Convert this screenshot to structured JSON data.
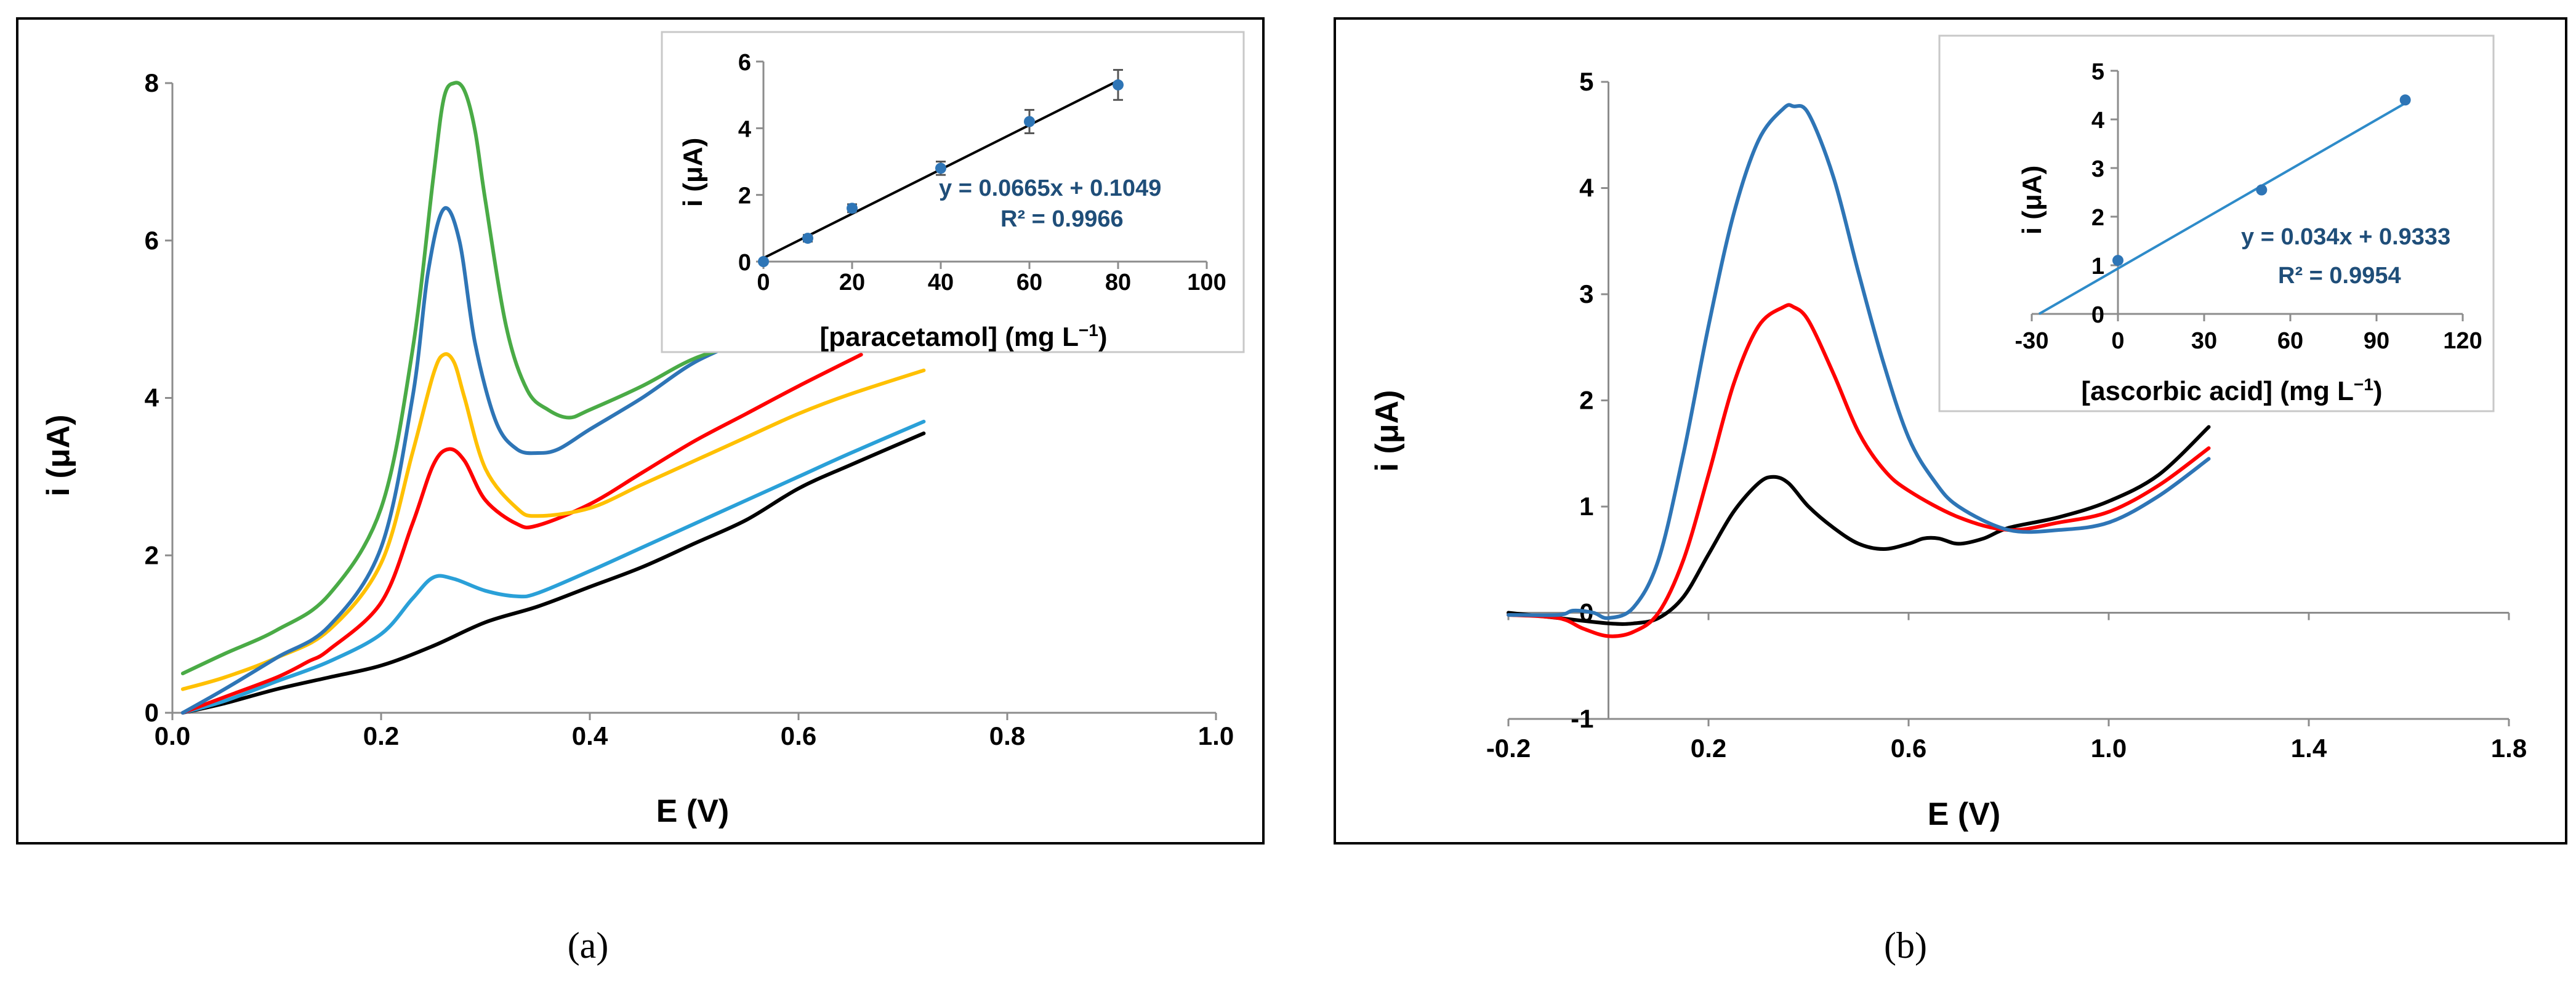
{
  "chart_data": [
    {
      "panel": "a",
      "type": "line",
      "caption": "(a)",
      "xlabel": "E (V)",
      "ylabel": "i (μA)",
      "xlim": [
        0.0,
        1.0
      ],
      "ylim": [
        0,
        8
      ],
      "xticks": [
        "0.0",
        "0.2",
        "0.4",
        "0.6",
        "0.8",
        "1.0"
      ],
      "yticks": [
        "0",
        "2",
        "4",
        "6",
        "8"
      ],
      "series": [
        {
          "name": "black",
          "color": "#000000",
          "x": [
            0.01,
            0.05,
            0.1,
            0.15,
            0.2,
            0.25,
            0.3,
            0.35,
            0.4,
            0.45,
            0.5,
            0.55,
            0.6,
            0.65,
            0.72
          ],
          "y": [
            0.0,
            0.12,
            0.3,
            0.45,
            0.6,
            0.85,
            1.15,
            1.35,
            1.6,
            1.85,
            2.15,
            2.45,
            2.85,
            3.15,
            3.55
          ]
        },
        {
          "name": "light blue",
          "color": "#2aa0d8",
          "x": [
            0.01,
            0.05,
            0.1,
            0.15,
            0.2,
            0.23,
            0.25,
            0.27,
            0.3,
            0.33,
            0.35,
            0.4,
            0.45,
            0.5,
            0.55,
            0.6,
            0.65,
            0.72
          ],
          "y": [
            0.0,
            0.15,
            0.4,
            0.65,
            1.0,
            1.45,
            1.72,
            1.7,
            1.55,
            1.48,
            1.52,
            1.8,
            2.1,
            2.4,
            2.7,
            3.0,
            3.3,
            3.7
          ]
        },
        {
          "name": "red",
          "color": "#ff0000",
          "x": [
            0.01,
            0.05,
            0.1,
            0.13,
            0.15,
            0.2,
            0.23,
            0.25,
            0.265,
            0.28,
            0.3,
            0.33,
            0.35,
            0.4,
            0.45,
            0.5,
            0.55,
            0.6,
            0.66
          ],
          "y": [
            0.0,
            0.2,
            0.45,
            0.65,
            0.8,
            1.4,
            2.4,
            3.15,
            3.35,
            3.2,
            2.7,
            2.4,
            2.38,
            2.65,
            3.05,
            3.45,
            3.8,
            4.15,
            4.55
          ]
        },
        {
          "name": "yellow",
          "color": "#ffc000",
          "x": [
            0.01,
            0.05,
            0.1,
            0.15,
            0.2,
            0.23,
            0.25,
            0.26,
            0.27,
            0.28,
            0.3,
            0.33,
            0.35,
            0.4,
            0.45,
            0.5,
            0.55,
            0.6,
            0.65,
            0.72
          ],
          "y": [
            0.3,
            0.45,
            0.7,
            1.05,
            1.9,
            3.3,
            4.3,
            4.55,
            4.45,
            4.0,
            3.1,
            2.6,
            2.5,
            2.6,
            2.9,
            3.2,
            3.5,
            3.8,
            4.05,
            4.35
          ]
        },
        {
          "name": "blue",
          "color": "#2e75b6",
          "x": [
            0.01,
            0.05,
            0.1,
            0.15,
            0.2,
            0.23,
            0.245,
            0.26,
            0.275,
            0.29,
            0.31,
            0.33,
            0.35,
            0.37,
            0.4,
            0.45,
            0.5,
            0.55
          ],
          "y": [
            0.0,
            0.3,
            0.7,
            1.1,
            2.1,
            4.0,
            5.6,
            6.4,
            6.0,
            4.7,
            3.7,
            3.35,
            3.3,
            3.35,
            3.6,
            4.0,
            4.45,
            4.75
          ]
        },
        {
          "name": "green",
          "color": "#4aab46",
          "x": [
            0.01,
            0.05,
            0.1,
            0.15,
            0.2,
            0.23,
            0.25,
            0.26,
            0.27,
            0.28,
            0.29,
            0.3,
            0.32,
            0.34,
            0.36,
            0.38,
            0.4,
            0.45,
            0.5,
            0.55
          ],
          "y": [
            0.5,
            0.75,
            1.05,
            1.5,
            2.6,
            4.6,
            6.8,
            7.8,
            8.0,
            7.9,
            7.4,
            6.5,
            4.9,
            4.1,
            3.85,
            3.75,
            3.85,
            4.15,
            4.5,
            4.7
          ]
        }
      ],
      "inset": {
        "xlabel_main": "[paracetamol] (mg L",
        "xlabel_sup": "−1",
        "xlabel_end": ")",
        "ylabel": "i (μA)",
        "xlim": [
          0,
          100
        ],
        "ylim": [
          0,
          6
        ],
        "xticks": [
          "0",
          "20",
          "40",
          "60",
          "80",
          "100"
        ],
        "yticks": [
          "0",
          "2",
          "4",
          "6"
        ],
        "points": {
          "x": [
            0,
            10,
            20,
            40,
            60,
            80
          ],
          "y": [
            0.0,
            0.7,
            1.6,
            2.8,
            4.2,
            5.3
          ],
          "err": [
            0.05,
            0.1,
            0.12,
            0.2,
            0.35,
            0.45
          ]
        },
        "fit": {
          "slope": 0.0665,
          "intercept": 0.1049,
          "x_range": [
            0,
            80
          ]
        },
        "equation": "y = 0.0665x + 0.1049",
        "r2": "R² = 0.9966",
        "point_color": "#2e75b6",
        "line_color": "#000000"
      }
    },
    {
      "panel": "b",
      "type": "line",
      "caption": "(b)",
      "xlabel": "E (V)",
      "ylabel": "i (μA)",
      "xlim": [
        -0.2,
        1.8
      ],
      "ylim": [
        -1,
        5
      ],
      "xticks": [
        "-0.2",
        "0.2",
        "0.6",
        "1.0",
        "1.4",
        "1.8"
      ],
      "yticks": [
        "-1",
        "0",
        "1",
        "2",
        "3",
        "4",
        "5"
      ],
      "series": [
        {
          "name": "black",
          "color": "#000000",
          "x": [
            -0.2,
            -0.1,
            0.0,
            0.05,
            0.1,
            0.15,
            0.2,
            0.25,
            0.3,
            0.33,
            0.36,
            0.4,
            0.45,
            0.5,
            0.55,
            0.6,
            0.63,
            0.66,
            0.7,
            0.75,
            0.8,
            0.9,
            1.0,
            1.1,
            1.2
          ],
          "y": [
            0.0,
            -0.05,
            -0.1,
            -0.1,
            -0.05,
            0.15,
            0.55,
            0.95,
            1.22,
            1.28,
            1.22,
            1.0,
            0.8,
            0.65,
            0.6,
            0.65,
            0.7,
            0.7,
            0.65,
            0.7,
            0.8,
            0.9,
            1.05,
            1.3,
            1.75
          ]
        },
        {
          "name": "red",
          "color": "#ff0000",
          "x": [
            -0.2,
            -0.1,
            -0.05,
            0.0,
            0.05,
            0.1,
            0.15,
            0.2,
            0.25,
            0.3,
            0.35,
            0.37,
            0.4,
            0.45,
            0.5,
            0.55,
            0.6,
            0.7,
            0.8,
            0.9,
            1.0,
            1.1,
            1.2
          ],
          "y": [
            -0.02,
            -0.05,
            -0.15,
            -0.22,
            -0.18,
            0.0,
            0.5,
            1.3,
            2.15,
            2.7,
            2.88,
            2.88,
            2.75,
            2.25,
            1.7,
            1.35,
            1.15,
            0.9,
            0.78,
            0.85,
            0.95,
            1.2,
            1.55
          ]
        },
        {
          "name": "blue",
          "color": "#2e75b6",
          "x": [
            -0.2,
            -0.1,
            -0.07,
            -0.03,
            0.0,
            0.05,
            0.1,
            0.15,
            0.2,
            0.25,
            0.3,
            0.35,
            0.37,
            0.4,
            0.45,
            0.5,
            0.55,
            0.6,
            0.65,
            0.7,
            0.8,
            0.9,
            1.0,
            1.1,
            1.2
          ],
          "y": [
            -0.02,
            -0.02,
            0.02,
            0.0,
            -0.05,
            0.05,
            0.5,
            1.5,
            2.7,
            3.75,
            4.45,
            4.75,
            4.77,
            4.7,
            4.1,
            3.2,
            2.35,
            1.65,
            1.25,
            1.0,
            0.78,
            0.78,
            0.85,
            1.1,
            1.45
          ]
        }
      ],
      "inset": {
        "xlabel_main": "[ascorbic acid] (mg L",
        "xlabel_sup": "−1",
        "xlabel_end": ")",
        "ylabel": "i (μA)",
        "xlim": [
          -30,
          120
        ],
        "ylim": [
          0,
          5
        ],
        "xticks": [
          "-30",
          "0",
          "30",
          "60",
          "90",
          "120"
        ],
        "yticks": [
          "0",
          "1",
          "2",
          "3",
          "4",
          "5"
        ],
        "points": {
          "x": [
            0,
            50,
            100
          ],
          "y": [
            1.1,
            2.55,
            4.4
          ],
          "err": []
        },
        "fit": {
          "slope": 0.034,
          "intercept": 0.9333,
          "x_range": [
            -27.45,
            100
          ]
        },
        "equation": "y = 0.034x + 0.9333",
        "r2": "R² = 0.9954",
        "point_color": "#2e75b6",
        "line_color": "#2e8bc9"
      }
    }
  ]
}
